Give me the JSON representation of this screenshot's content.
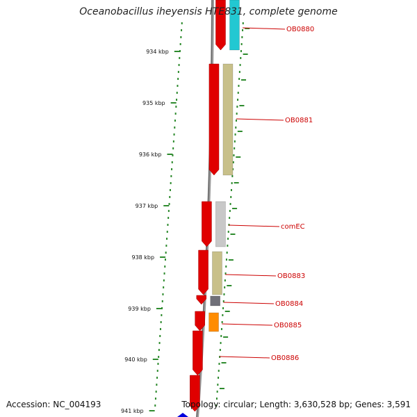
{
  "title": "Oceanobacillus iheyensis HTE831, complete genome",
  "footer": {
    "accession": "Accession: NC_004193",
    "summary": "Topology: circular; Length: 3,630,528 bp; Genes: 3,591"
  },
  "ruler": {
    "unit": "kbp",
    "ticks": [
      "934 kbp",
      "935 kbp",
      "936 kbp",
      "937 kbp",
      "938 kbp",
      "939 kbp",
      "940 kbp",
      "941 kbp"
    ]
  },
  "genes": [
    {
      "id": "OB0880",
      "label": "OB0880",
      "color": "#22c8d2"
    },
    {
      "id": "OB0881",
      "label": "OB0881",
      "color": "#c8c08a"
    },
    {
      "id": "comEC",
      "label": "comEC",
      "color": "#c8c8c8"
    },
    {
      "id": "OB0883",
      "label": "OB0883",
      "color": "#c8c08a"
    },
    {
      "id": "OB0884",
      "label": "OB0884",
      "color": "#707078"
    },
    {
      "id": "OB0885",
      "label": "OB0885",
      "color": "#ff8c00"
    },
    {
      "id": "OB0886",
      "label": "OB0886",
      "color": "#cc0000"
    }
  ],
  "colors": {
    "strand": "#e00000",
    "backbone": "#888888",
    "ticks": "#2e8b2e",
    "label": "#cc0000",
    "marker": "#0000dd"
  }
}
